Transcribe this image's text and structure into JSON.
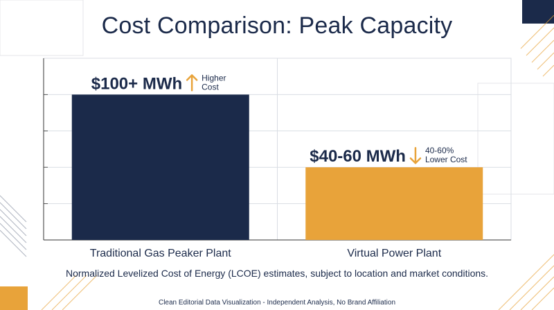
{
  "title": "Cost Comparison: Peak Capacity",
  "note": "Normalized Levelized Cost of Energy (LCOE) estimates, subject to location and market conditions.",
  "footer": "Clean Editorial Data Visualization - Independent Analysis, No Brand Affiliation",
  "colors": {
    "navy": "#1b2a4a",
    "orange": "#e8a33a",
    "grid": "#d9dde3"
  },
  "chart_data": {
    "type": "bar",
    "categories": [
      "Traditional Gas Peaker Plant",
      "Virtual Power Plant"
    ],
    "values": [
      100,
      50
    ],
    "bar_colors": [
      "#1b2a4a",
      "#e8a33a"
    ],
    "data_labels": [
      {
        "value_text": "$100+ MWh",
        "arrow": "up-arrow-icon",
        "note_lines": [
          "Higher",
          "Cost"
        ]
      },
      {
        "value_text": "$40-60 MWh",
        "arrow": "down-arrow-icon",
        "note_lines": [
          "40-60%",
          "Lower Cost"
        ]
      }
    ],
    "ylim": [
      0,
      125
    ],
    "grid": true,
    "title": "",
    "xlabel": "",
    "ylabel": ""
  }
}
